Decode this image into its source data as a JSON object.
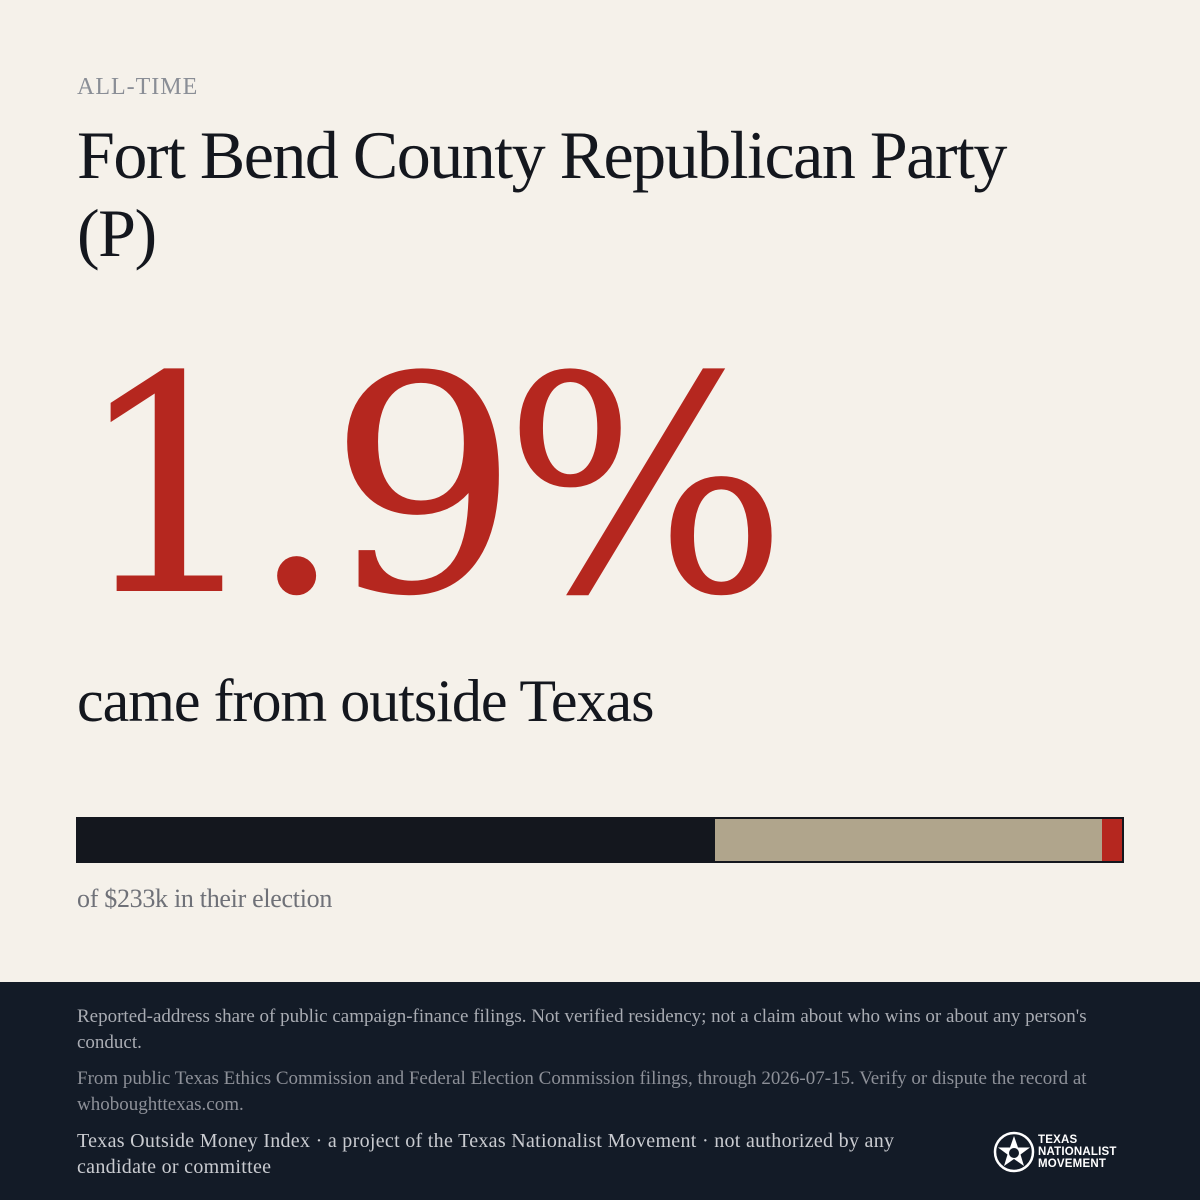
{
  "eyebrow": "ALL-TIME",
  "title": "Fort Bend County Republican Party (P)",
  "headline": {
    "percent": "1.9%",
    "subtitle": "came from outside Texas"
  },
  "bar": {
    "segments": [
      {
        "name": "dark",
        "fraction": 0.61,
        "color": "#14171e"
      },
      {
        "name": "tan",
        "fraction": 0.37,
        "color": "#b0a58c"
      },
      {
        "name": "outside-texas",
        "fraction": 0.019,
        "color": "#b5271f"
      }
    ]
  },
  "caption": "of $233k in their election",
  "footer": {
    "disclaimer": "Reported-address share of public campaign-finance filings. Not verified residency; not a claim about who wins or about any person's conduct.",
    "source": "From public Texas Ethics Commission and Federal Election Commission filings, through 2026-07-15. Verify or dispute the record at whoboughttexas.com.",
    "credit": "Texas Outside Money Index · a project of the Texas Nationalist Movement · not authorized by any candidate or committee",
    "logo": {
      "icon": "star-seal-icon",
      "lines": [
        "TEXAS",
        "NATIONALIST",
        "MOVEMENT"
      ]
    }
  },
  "colors": {
    "accent": "#b5271f",
    "background": "#f5f1ea",
    "ink": "#14171e",
    "tan": "#b0a58c",
    "footer": "#131b27"
  }
}
